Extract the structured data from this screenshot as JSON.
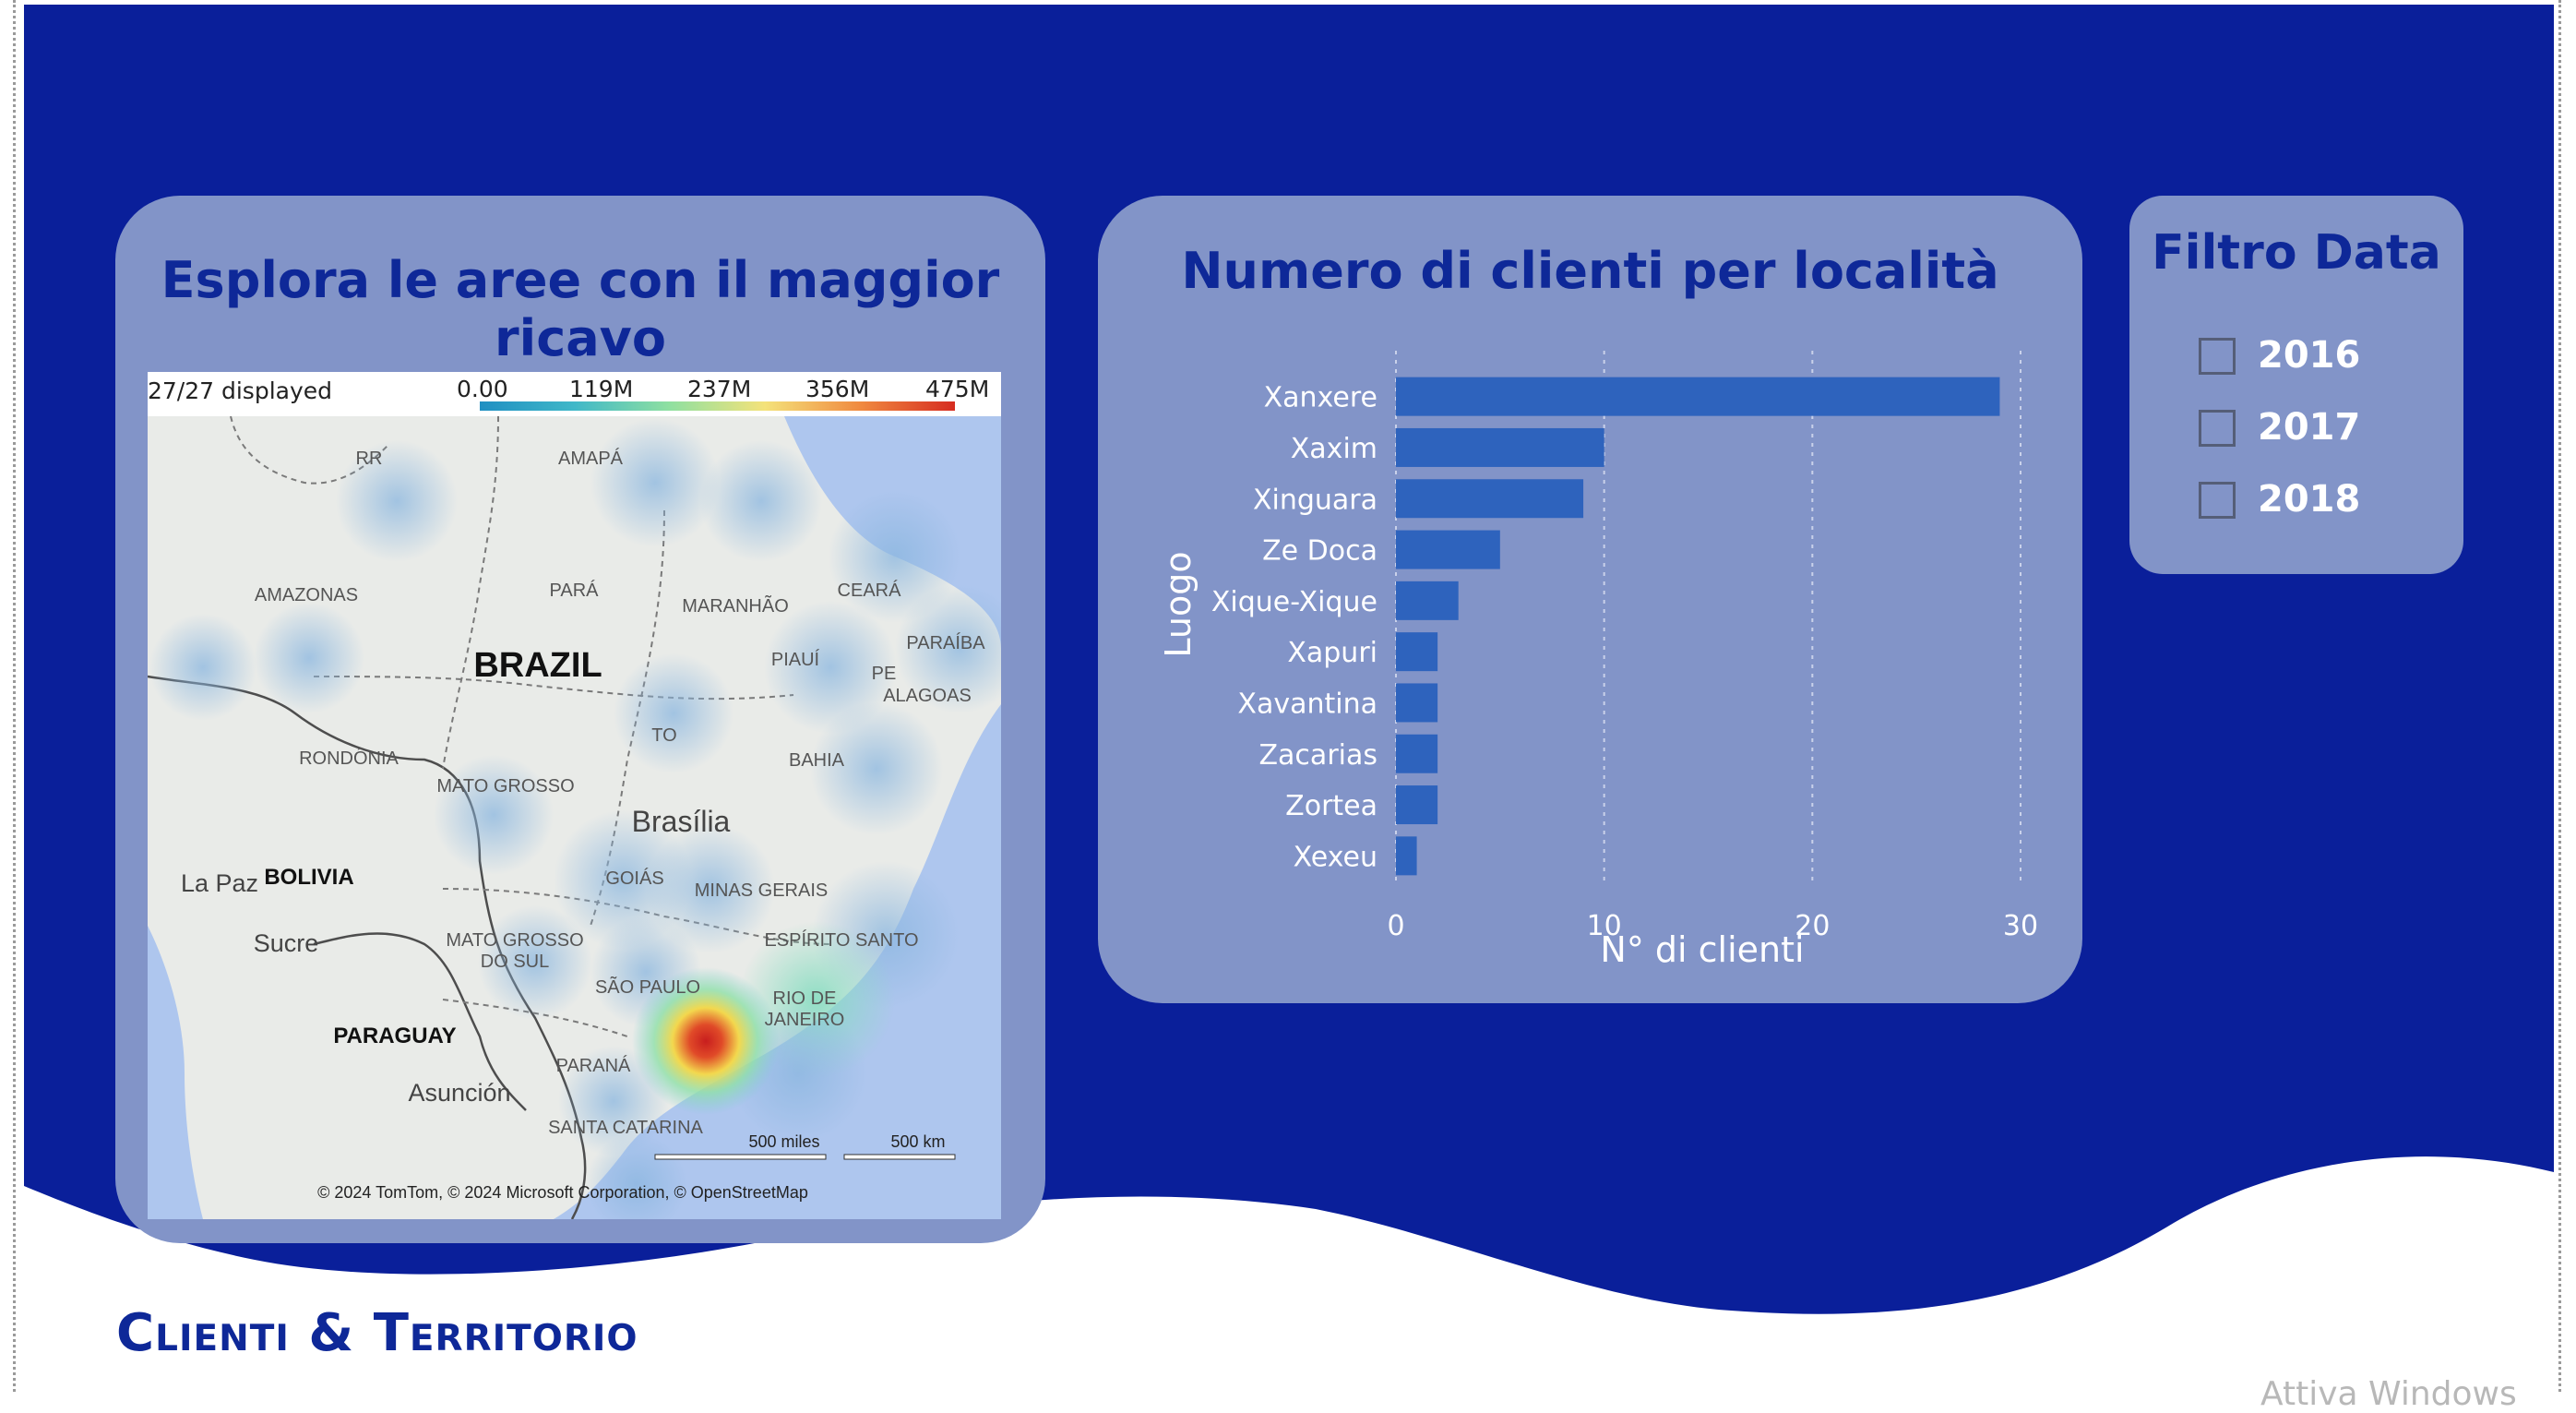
{
  "report": {
    "title_part1": "Clienti",
    "title_amp": "&",
    "title_part2": "Territorio",
    "watermark": "Attiva Windows"
  },
  "colors": {
    "banner": "#0a1f9a",
    "card": "#8294c8",
    "title": "#0e2898",
    "bar": "#2e63bd"
  },
  "map_card": {
    "title": "Esplora le aree con il maggior ricavo",
    "displayed": "27/27 displayed",
    "legend": [
      "0.00",
      "119M",
      "237M",
      "356M",
      "475M"
    ],
    "attribution": "© 2024 TomTom, © 2024 Microsoft Corporation, © OpenStreetMap",
    "scale_miles": "500 miles",
    "scale_km": "500 km",
    "labels": {
      "rr": "RR",
      "amapa": "AMAPÁ",
      "amazonas": "AMAZONAS",
      "para": "PARÁ",
      "maranhao": "MARANHÃO",
      "ceara": "CEARÁ",
      "brazil": "BRAZIL",
      "piaui": "PIAUÍ",
      "pe": "PE",
      "paraiba": "PARAÍBA",
      "alagoas": "ALAGOAS",
      "to": "TO",
      "rondonia": "RONDÔNIA",
      "bahia": "BAHIA",
      "mato_grosso": "MATO GROSSO",
      "brasilia": "Brasília",
      "la_paz": "La Paz",
      "bolivia": "BOLIVIA",
      "goias": "GOIÁS",
      "minas": "MINAS GERAIS",
      "sucre": "Sucre",
      "ms1": "MATO GROSSO",
      "ms2": "DO SUL",
      "espirito": "ESPÍRITO SANTO",
      "sao_paulo": "SÃO PAULO",
      "rio1": "RIO DE",
      "rio2": "JANEIRO",
      "paraguay": "PARAGUAY",
      "parana": "PARANÁ",
      "asuncion": "Asunción",
      "santa_catarina": "SANTA CATARINA"
    }
  },
  "chart_data": {
    "type": "bar",
    "orientation": "horizontal",
    "title": "Numero di clienti per località",
    "categories": [
      "Xanxere",
      "Xaxim",
      "Xinguara",
      "Ze Doca",
      "Xique-Xique",
      "Xapuri",
      "Xavantina",
      "Zacarias",
      "Zortea",
      "Xexeu"
    ],
    "values": [
      29,
      10,
      9,
      5,
      3,
      2,
      2,
      2,
      2,
      1
    ],
    "xlabel": "N° di clienti",
    "ylabel": "Luogo",
    "xlim": [
      0,
      30
    ],
    "xticks": [
      "0",
      "10",
      "20",
      "30"
    ],
    "grid": true
  },
  "filter_card": {
    "title": "Filtro Data",
    "items": [
      {
        "label": "2016",
        "checked": false
      },
      {
        "label": "2017",
        "checked": false
      },
      {
        "label": "2018",
        "checked": false
      }
    ]
  }
}
